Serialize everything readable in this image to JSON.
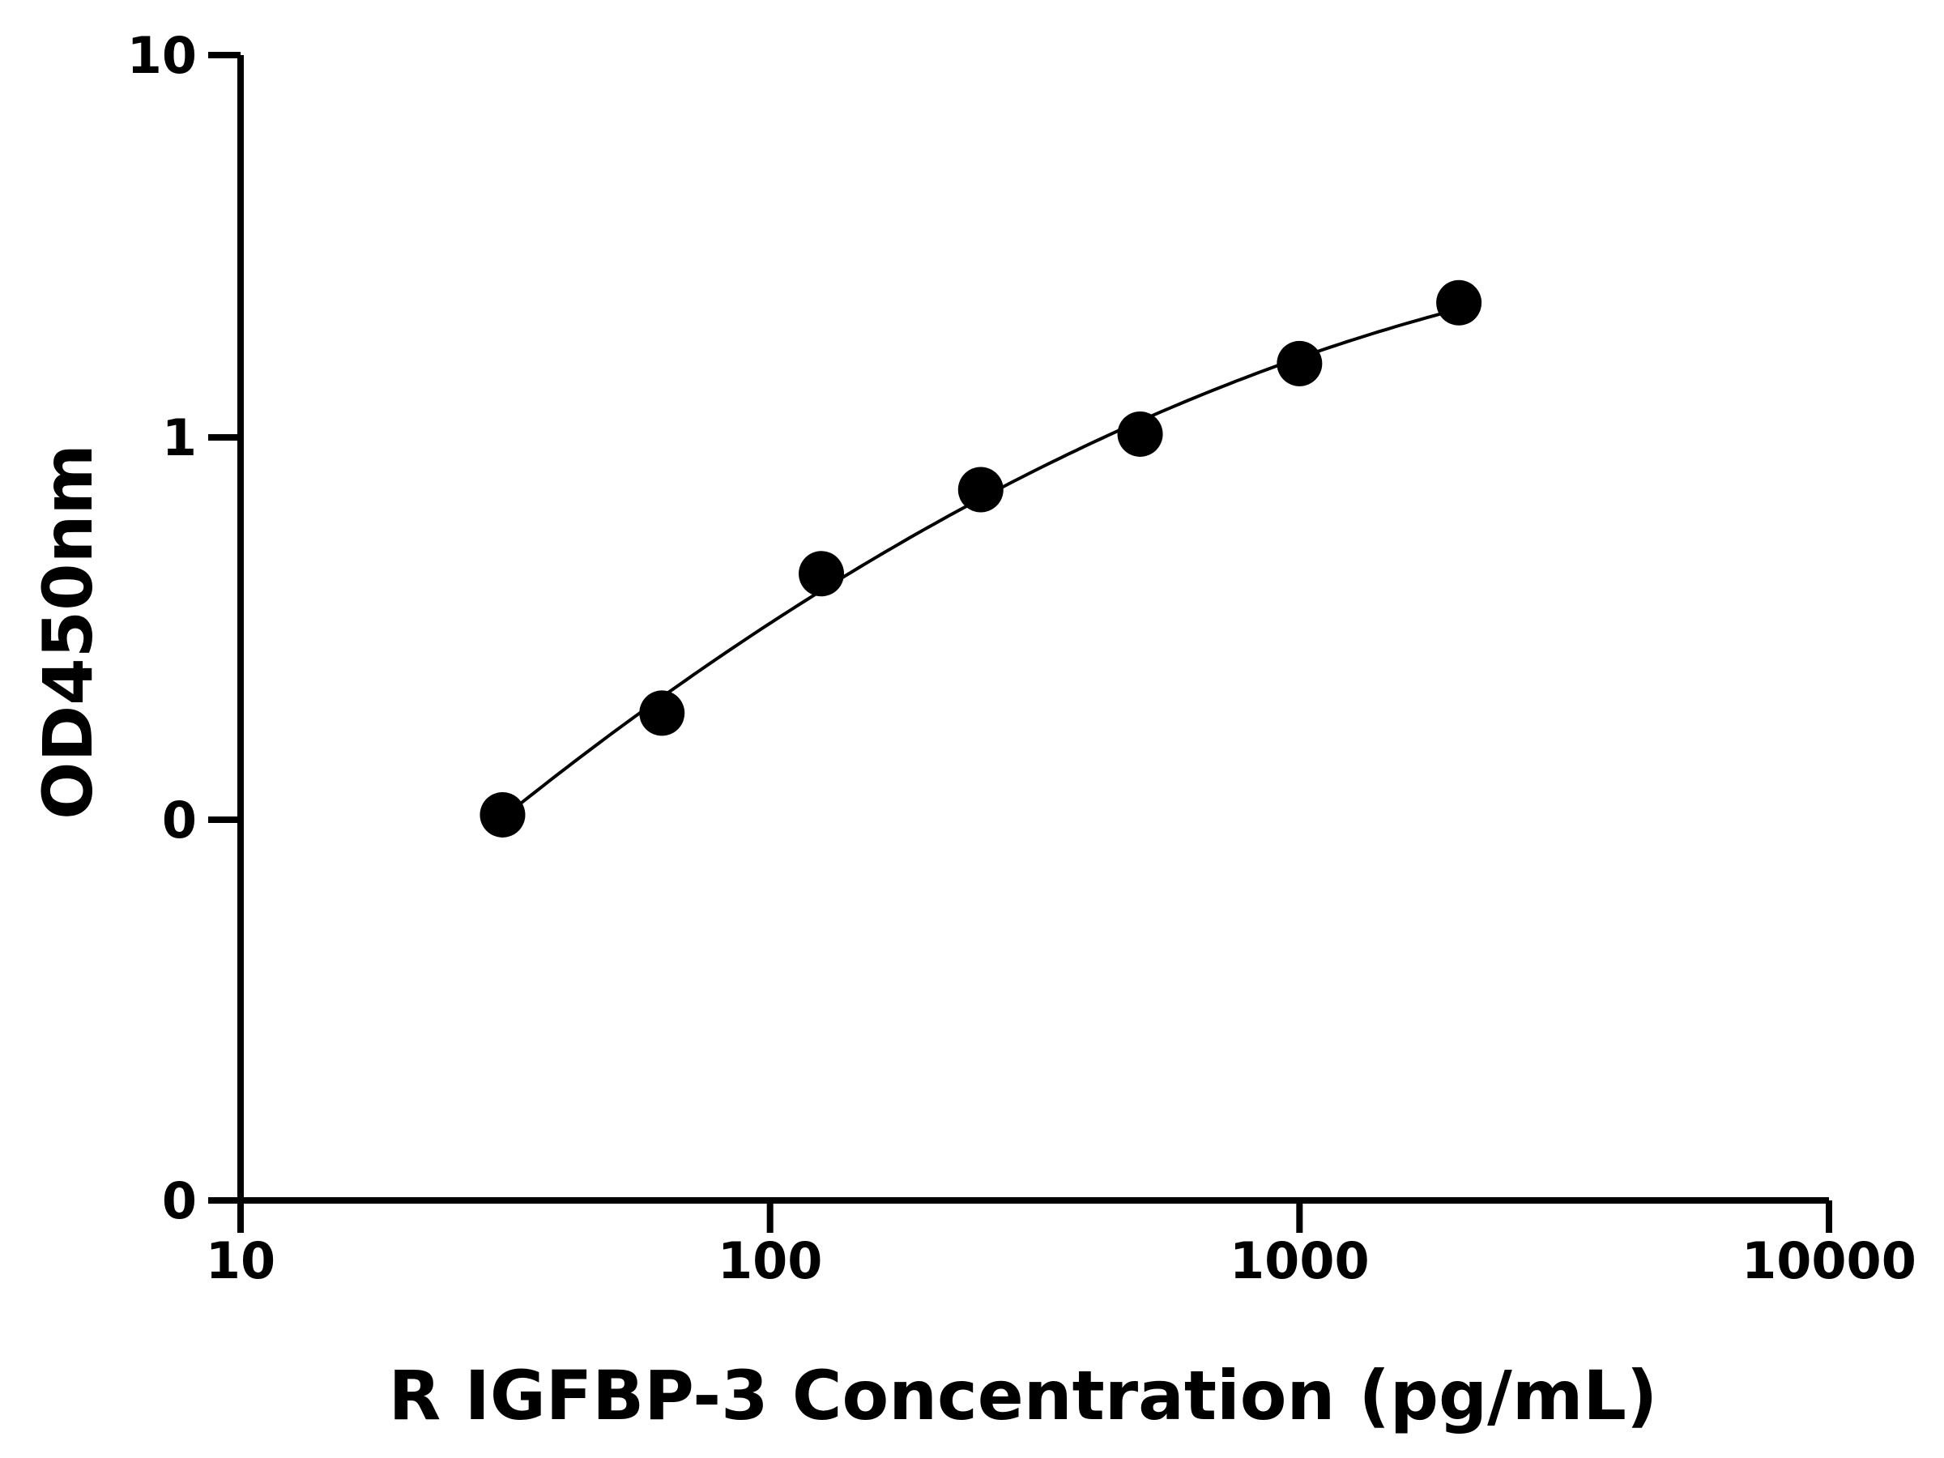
{
  "chart_data": {
    "type": "scatter",
    "title": "",
    "xlabel": "R IGFBP-3 Concentration (pg/mL)",
    "ylabel": "OD450nm",
    "x_scale": "log",
    "xlim": [
      10,
      10000
    ],
    "x_ticks": [
      10,
      100,
      1000,
      10000
    ],
    "x_tick_labels": [
      "10",
      "100",
      "1000",
      "10000"
    ],
    "y_scale": "log",
    "y_tick_labels": [
      "0",
      "0",
      "1",
      "10"
    ],
    "y_tick_values": [
      0.01,
      0.1,
      1,
      10
    ],
    "grid": false,
    "legend": "none",
    "series": [
      {
        "x": [
          31.25,
          62.5,
          125,
          250,
          500,
          1000,
          2000
        ],
        "y": [
          0.103,
          0.19,
          0.44,
          0.73,
          1.02,
          1.56,
          2.25
        ],
        "fit_curve": true
      }
    ]
  }
}
